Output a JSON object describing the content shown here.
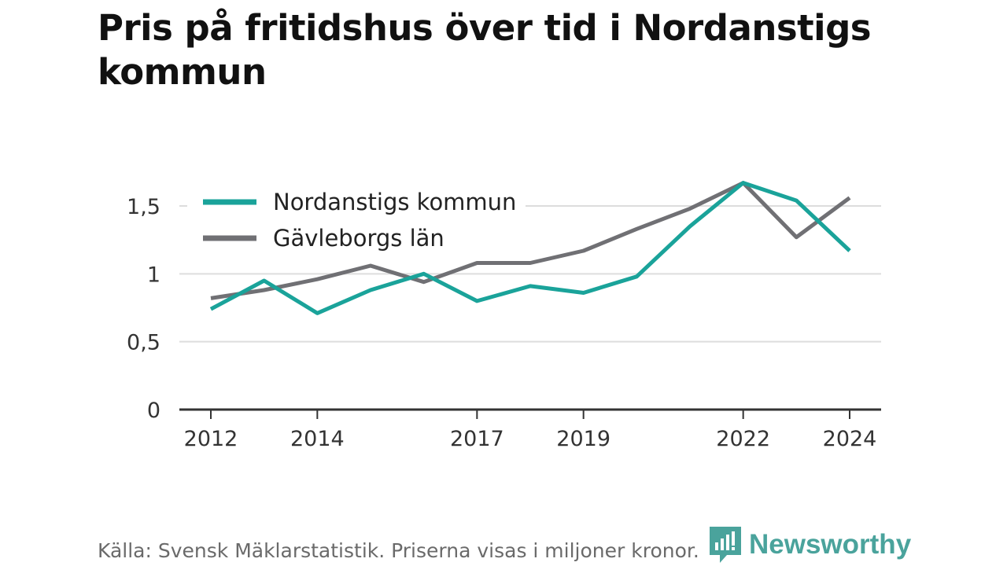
{
  "title": "Pris på fritidshus över tid i Nordanstigs kommun",
  "footer": {
    "source": "Källa: Svensk Mäklarstatistik. Priserna visas i miljoner kronor."
  },
  "brand": {
    "name": "Newsworthy",
    "icon": "newsworthy-logo-icon",
    "color": "#4aa39c"
  },
  "chart_data": {
    "type": "line",
    "x": [
      2012,
      2013,
      2014,
      2015,
      2016,
      2017,
      2018,
      2019,
      2020,
      2021,
      2022,
      2023,
      2024
    ],
    "x_ticks": [
      2012,
      2014,
      2017,
      2019,
      2022,
      2024
    ],
    "x_tick_labels": [
      "2012",
      "2014",
      "2017",
      "2019",
      "2022",
      "2024"
    ],
    "y_ticks": [
      0,
      0.5,
      1,
      1.5
    ],
    "y_tick_labels": [
      "0",
      "0,5",
      "1",
      "1,5"
    ],
    "ylim": [
      0,
      1.72
    ],
    "grid": true,
    "legend_position": "top-left",
    "series": [
      {
        "name": "Nordanstigs kommun",
        "color": "#1aa39a",
        "values": [
          0.74,
          0.95,
          0.71,
          0.88,
          1.0,
          0.8,
          0.91,
          0.86,
          0.98,
          1.35,
          1.67,
          1.54,
          1.17
        ]
      },
      {
        "name": "Gävleborgs län",
        "color": "#707074",
        "values": [
          0.82,
          0.88,
          0.96,
          1.06,
          0.94,
          1.08,
          1.08,
          1.17,
          1.33,
          1.48,
          1.67,
          1.27,
          1.56
        ]
      }
    ]
  }
}
